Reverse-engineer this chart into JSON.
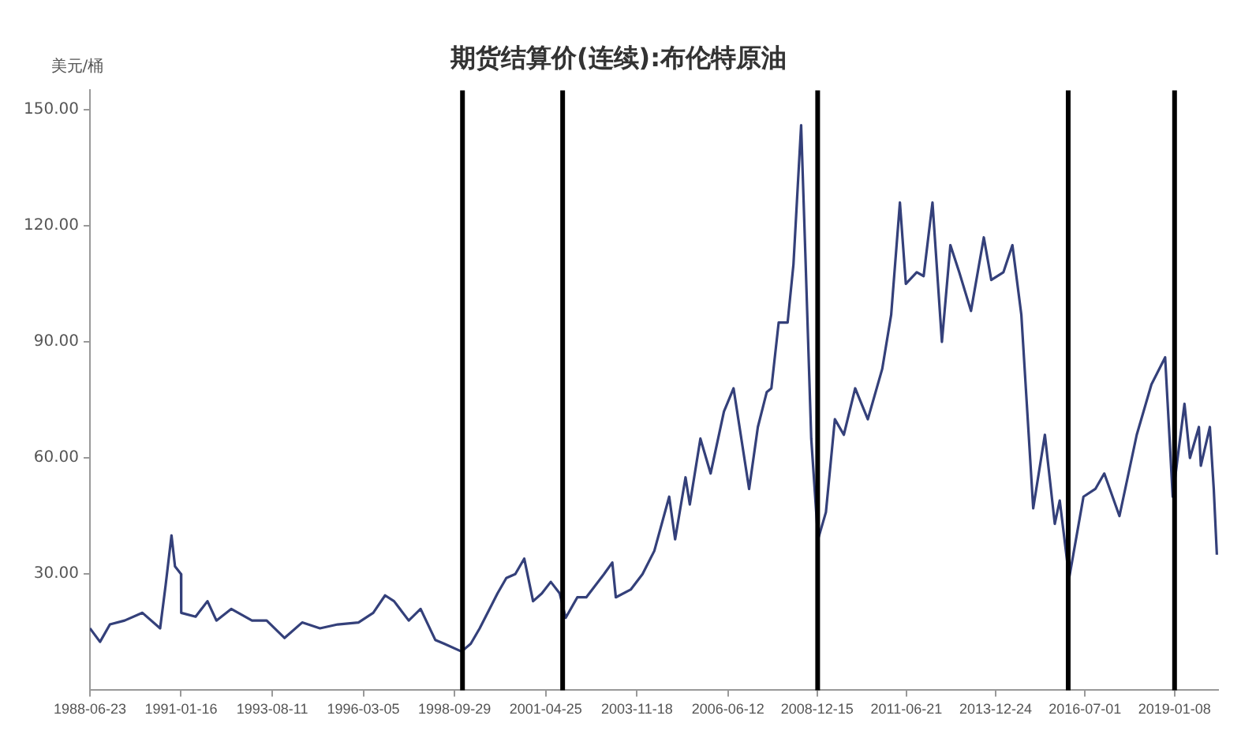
{
  "chart_data": {
    "type": "line",
    "title": "期货结算价(连续):布伦特原油",
    "ylabel": "美元/桶",
    "x": [
      "1988-06-23",
      "1988-10-05",
      "1989-01-15",
      "1989-06-15",
      "1989-12-15",
      "1990-06-15",
      "1990-08-10",
      "1990-10-10",
      "1990-11-15",
      "1991-01-16",
      "1991-01-18",
      "1991-06-15",
      "1991-10-15",
      "1992-01-15",
      "1992-06-15",
      "1993-01-15",
      "1993-06-15",
      "1993-12-15",
      "1994-06-15",
      "1994-12-15",
      "1995-06-15",
      "1996-01-15",
      "1996-06-15",
      "1996-10-15",
      "1997-01-15",
      "1997-06-15",
      "1997-10-15",
      "1998-03-15",
      "1998-06-15",
      "1998-12-10",
      "1999-03-15",
      "1999-06-15",
      "1999-12-15",
      "2000-03-15",
      "2000-06-15",
      "2000-09-15",
      "2000-12-15",
      "2001-03-15",
      "2001-06-15",
      "2001-09-15",
      "2001-11-15",
      "2002-03-15",
      "2002-06-15",
      "2002-12-15",
      "2003-03-10",
      "2003-04-15",
      "2003-09-15",
      "2004-01-15",
      "2004-05-15",
      "2004-10-15",
      "2004-12-15",
      "2005-04-01",
      "2005-05-15",
      "2005-09-01",
      "2005-12-15",
      "2006-05-01",
      "2006-08-08",
      "2007-01-15",
      "2007-04-15",
      "2007-07-15",
      "2007-09-01",
      "2007-11-15",
      "2008-02-15",
      "2008-04-15",
      "2008-07-03",
      "2008-08-15",
      "2008-10-15",
      "2008-12-24",
      "2009-03-15",
      "2009-06-15",
      "2009-09-15",
      "2010-01-10",
      "2010-05-20",
      "2010-10-15",
      "2011-01-15",
      "2011-04-15",
      "2011-06-15",
      "2011-10-05",
      "2011-12-15",
      "2012-03-15",
      "2012-06-20",
      "2012-09-15",
      "2012-12-15",
      "2013-04-15",
      "2013-08-25",
      "2013-11-10",
      "2014-03-15",
      "2014-06-15",
      "2014-09-15",
      "2014-11-15",
      "2015-01-15",
      "2015-05-15",
      "2015-08-25",
      "2015-10-15",
      "2016-01-20",
      "2016-06-15",
      "2016-10-15",
      "2017-01-15",
      "2017-06-20",
      "2017-12-15",
      "2018-05-15",
      "2018-10-03",
      "2018-12-20",
      "2019-04-20",
      "2019-06-15",
      "2019-09-15",
      "2019-10-05",
      "2020-01-06",
      "2020-02-15",
      "2020-03-18"
    ],
    "series": [
      {
        "color": "#34407a",
        "values": [
          16,
          12.5,
          17,
          18,
          20,
          16,
          27,
          40,
          32,
          30,
          20,
          19,
          23,
          18,
          21,
          18,
          18,
          13.5,
          17.5,
          16,
          17,
          17.5,
          20,
          24.5,
          23,
          18,
          21,
          13,
          12,
          10,
          12,
          16,
          25,
          29,
          30,
          34,
          23,
          25,
          28,
          25,
          18.7,
          24,
          24,
          30,
          33,
          24,
          26,
          30,
          36,
          50,
          39,
          55,
          48,
          65,
          56,
          72,
          78,
          52,
          68,
          77,
          78,
          95,
          95,
          110,
          146,
          113,
          65,
          39,
          46,
          70,
          66,
          78,
          70,
          83,
          97,
          126,
          105,
          108,
          107,
          126,
          90,
          115,
          108,
          98,
          117,
          106,
          108,
          115,
          97,
          72,
          47,
          66,
          43,
          49,
          29,
          50,
          52,
          56,
          45,
          66,
          79,
          86,
          50,
          74,
          60,
          68,
          58,
          68,
          52,
          35
        ]
      }
    ],
    "xlim": [
      "1988-06-23",
      "2020-03-31"
    ],
    "xticks": [
      "1988-06-23",
      "1991-01-16",
      "1993-08-11",
      "1996-03-05",
      "1998-09-29",
      "2001-04-25",
      "2003-11-18",
      "2006-06-12",
      "2008-12-15",
      "2011-06-21",
      "2013-12-24",
      "2016-07-01",
      "2019-01-08"
    ],
    "ylim": [
      0,
      155
    ],
    "yticks": [
      {
        "value": 30,
        "label": "30.00"
      },
      {
        "value": 60,
        "label": "60.00"
      },
      {
        "value": 90,
        "label": "90.00"
      },
      {
        "value": 120,
        "label": "120.00"
      },
      {
        "value": 150,
        "label": "150.00"
      }
    ],
    "ref_lines": [
      {
        "axis": "x",
        "value": "1998-12-20",
        "color": "#000000"
      },
      {
        "axis": "x",
        "value": "2001-10-15",
        "color": "#000000"
      },
      {
        "axis": "x",
        "value": "2008-12-20",
        "color": "#000000"
      },
      {
        "axis": "x",
        "value": "2016-01-10",
        "color": "#000000"
      },
      {
        "axis": "x",
        "value": "2019-01-08",
        "color": "#000000"
      }
    ],
    "grid": false,
    "legend": false,
    "marker": "none",
    "line_style": "solid"
  }
}
